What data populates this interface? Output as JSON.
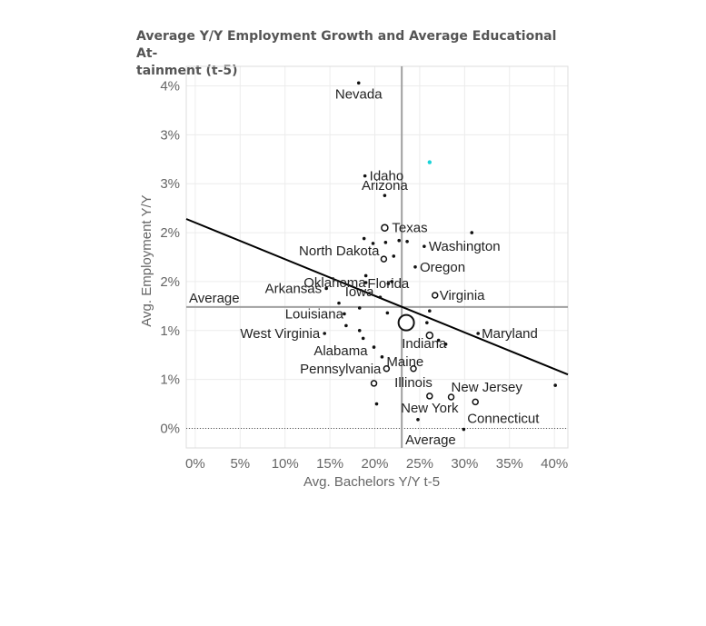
{
  "title_line1": "Average Y/Y Employment Growth and Average Educational At-",
  "title_line2": "tainment (t-5)",
  "chart_data": {
    "type": "scatter",
    "title": "Average Y/Y Employment Growth and Average Educational Attainment (t-5)",
    "xlabel": "Avg. Bachelors Y/Y t-5",
    "ylabel": "Avg. Employment Y/Y",
    "xlim": [
      -1,
      41.5
    ],
    "ylim": [
      -0.2,
      3.7
    ],
    "x_ticks": [
      0,
      5,
      10,
      15,
      20,
      25,
      30,
      35,
      40
    ],
    "x_tick_labels": [
      "0%",
      "5%",
      "10%",
      "15%",
      "20%",
      "25%",
      "30%",
      "35%",
      "40%"
    ],
    "y_ticks": [
      0,
      0.5,
      1.0,
      1.5,
      2.0,
      2.5,
      3.0,
      3.5
    ],
    "y_tick_labels": [
      "0%",
      "1%",
      "1%",
      "2%",
      "2%",
      "3%",
      "3%",
      "4%"
    ],
    "grid": true,
    "avg_x": 23.0,
    "avg_y": 1.24,
    "avg_x_label": "Average",
    "avg_y_label": "Average",
    "trend_line": {
      "x": [
        -1,
        41.5
      ],
      "y": [
        2.14,
        0.55
      ]
    },
    "highlight_point": {
      "x": 26.1,
      "y": 2.72,
      "color": "#19d3d8"
    },
    "colors": {
      "points": "#111111",
      "trend": "#000000",
      "reference": "#a0a0a0",
      "grid": "#ececec",
      "zero": "#555555"
    },
    "points": [
      {
        "x": 18.2,
        "y": 3.53,
        "label": "Nevada"
      },
      {
        "x": 18.9,
        "y": 2.58,
        "label": "Idaho"
      },
      {
        "x": 21.1,
        "y": 2.38,
        "label": "Arizona"
      },
      {
        "x": 21.1,
        "y": 2.05,
        "label": "Texas",
        "size": 3.5
      },
      {
        "x": 25.5,
        "y": 1.86,
        "label": "Washington"
      },
      {
        "x": 21.0,
        "y": 1.73,
        "label": "North Dakota",
        "size": 3
      },
      {
        "x": 24.5,
        "y": 1.65,
        "label": "Oregon"
      },
      {
        "x": 21.5,
        "y": 1.48,
        "label": "Florida"
      },
      {
        "x": 19.0,
        "y": 1.49,
        "label": "Oklahoma"
      },
      {
        "x": 14.6,
        "y": 1.43,
        "label": "Arkansas"
      },
      {
        "x": 20.6,
        "y": 1.34,
        "label": "Iowa"
      },
      {
        "x": 26.7,
        "y": 1.36,
        "label": "Virginia",
        "size": 3
      },
      {
        "x": 16.6,
        "y": 1.17,
        "label": "Louisiana"
      },
      {
        "x": 14.4,
        "y": 0.97,
        "label": "West Virginia"
      },
      {
        "x": 26.1,
        "y": 0.95,
        "label": "Indiana",
        "size": 3.5
      },
      {
        "x": 31.5,
        "y": 0.97,
        "label": "Maryland"
      },
      {
        "x": 19.9,
        "y": 0.83,
        "label": "Alabama"
      },
      {
        "x": 20.8,
        "y": 0.73,
        "label": "Maine"
      },
      {
        "x": 21.3,
        "y": 0.61,
        "label": "Pennsylvania",
        "size": 3
      },
      {
        "x": 24.3,
        "y": 0.61,
        "label": "Illinois",
        "size": 3
      },
      {
        "x": 28.5,
        "y": 0.32,
        "label": "New Jersey",
        "size": 3
      },
      {
        "x": 26.1,
        "y": 0.33,
        "label": "New York",
        "size": 3
      },
      {
        "x": 31.2,
        "y": 0.27,
        "label": "Connecticut",
        "size": 3
      },
      {
        "x": 23.5,
        "y": 1.08,
        "label": "",
        "size": 8.5
      },
      {
        "x": 30.8,
        "y": 2.0,
        "label": ""
      },
      {
        "x": 22.7,
        "y": 1.92,
        "label": ""
      },
      {
        "x": 18.8,
        "y": 1.94,
        "label": ""
      },
      {
        "x": 19.8,
        "y": 1.89,
        "label": ""
      },
      {
        "x": 21.2,
        "y": 1.9,
        "label": ""
      },
      {
        "x": 23.6,
        "y": 1.91,
        "label": ""
      },
      {
        "x": 22.1,
        "y": 1.76,
        "label": ""
      },
      {
        "x": 19.0,
        "y": 1.56,
        "label": ""
      },
      {
        "x": 21.9,
        "y": 1.5,
        "label": ""
      },
      {
        "x": 16.0,
        "y": 1.28,
        "label": ""
      },
      {
        "x": 18.3,
        "y": 1.23,
        "label": ""
      },
      {
        "x": 21.4,
        "y": 1.18,
        "label": ""
      },
      {
        "x": 25.8,
        "y": 1.08,
        "label": ""
      },
      {
        "x": 16.8,
        "y": 1.05,
        "label": ""
      },
      {
        "x": 18.3,
        "y": 1.0,
        "label": ""
      },
      {
        "x": 18.7,
        "y": 0.92,
        "label": ""
      },
      {
        "x": 27.1,
        "y": 0.9,
        "label": ""
      },
      {
        "x": 27.9,
        "y": 0.86,
        "label": ""
      },
      {
        "x": 26.1,
        "y": 1.2,
        "label": ""
      },
      {
        "x": 19.9,
        "y": 0.46,
        "label": "",
        "size": 3
      },
      {
        "x": 20.2,
        "y": 0.25,
        "label": ""
      },
      {
        "x": 24.8,
        "y": 0.09,
        "label": ""
      },
      {
        "x": 29.9,
        "y": -0.01,
        "label": ""
      },
      {
        "x": 40.1,
        "y": 0.44,
        "label": ""
      }
    ]
  }
}
